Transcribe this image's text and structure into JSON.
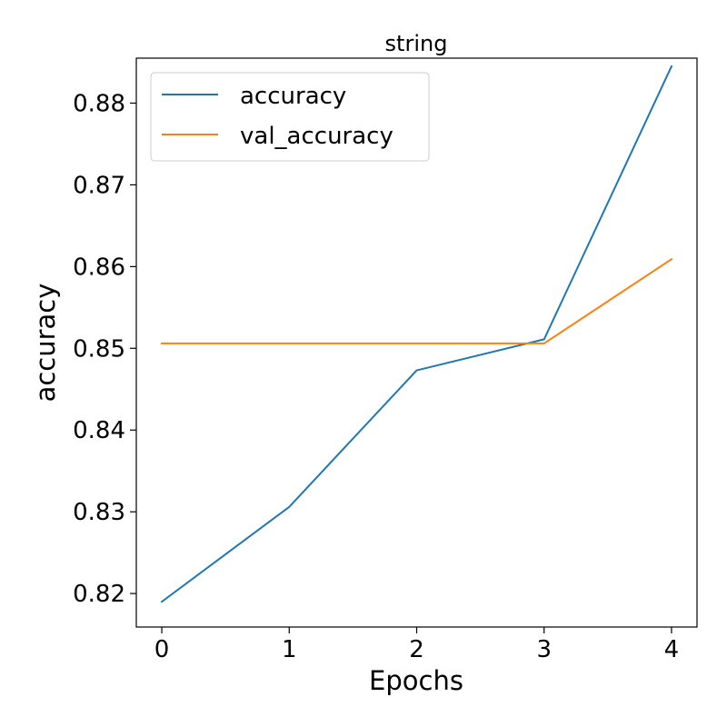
{
  "chart_data": {
    "type": "line",
    "title": "string",
    "xlabel": "Epochs",
    "ylabel": "accuracy",
    "x": [
      0,
      1,
      2,
      3,
      4
    ],
    "xlim": [
      -0.2,
      4.2
    ],
    "ylim": [
      0.8159,
      0.8855
    ],
    "xticks": [
      0,
      1,
      2,
      3,
      4
    ],
    "yticks": [
      0.82,
      0.83,
      0.84,
      0.85,
      0.86,
      0.87,
      0.88
    ],
    "grid": false,
    "legend_position": "top-left",
    "series": [
      {
        "name": "accuracy",
        "color": "#1f77b4",
        "values": [
          0.819,
          0.8306,
          0.8473,
          0.8511,
          0.8845
        ]
      },
      {
        "name": "val_accuracy",
        "color": "#ff7f0e",
        "values": [
          0.8506,
          0.8506,
          0.8506,
          0.8506,
          0.8609
        ]
      }
    ]
  }
}
